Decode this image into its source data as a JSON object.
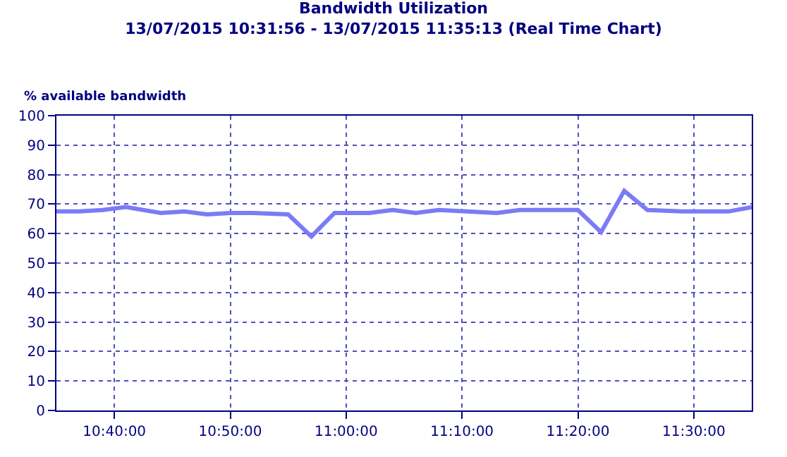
{
  "chart_data": {
    "type": "line",
    "title": "Bandwidth Utilization",
    "subtitle": "13/07/2015 10:31:56 - 13/07/2015 11:35:13 (Real Time Chart)",
    "ylabel": "% available bandwidth",
    "x": [
      "2015-07-13T10:35",
      "2015-07-13T10:37",
      "2015-07-13T10:39",
      "2015-07-13T10:41",
      "2015-07-13T10:44",
      "2015-07-13T10:46",
      "2015-07-13T10:48",
      "2015-07-13T10:50",
      "2015-07-13T10:52",
      "2015-07-13T10:55",
      "2015-07-13T10:57",
      "2015-07-13T10:59",
      "2015-07-13T11:02",
      "2015-07-13T11:04",
      "2015-07-13T11:06",
      "2015-07-13T11:08",
      "2015-07-13T11:13",
      "2015-07-13T11:15",
      "2015-07-13T11:20",
      "2015-07-13T11:22",
      "2015-07-13T11:24",
      "2015-07-13T11:26",
      "2015-07-13T11:29",
      "2015-07-13T11:33",
      "2015-07-13T11:35"
    ],
    "series": [
      {
        "color": "#7b7bf7",
        "values": [
          67.5,
          67.5,
          68,
          69,
          67,
          67.5,
          66.5,
          67,
          67,
          66.5,
          59,
          67,
          67,
          68,
          67,
          68,
          67,
          68,
          68,
          60.5,
          74.5,
          68,
          67.5,
          67.5,
          69
        ]
      }
    ],
    "xlim": [
      "2015-07-13T10:35",
      "2015-07-13T11:35"
    ],
    "xticks": [
      {
        "value": "2015-07-13T10:40",
        "label": "10:40:00"
      },
      {
        "value": "2015-07-13T10:50",
        "label": "10:50:00"
      },
      {
        "value": "2015-07-13T11:00",
        "label": "11:00:00"
      },
      {
        "value": "2015-07-13T11:10",
        "label": "11:10:00"
      },
      {
        "value": "2015-07-13T11:20",
        "label": "11:20:00"
      },
      {
        "value": "2015-07-13T11:30",
        "label": "11:30:00"
      }
    ],
    "ylim": [
      0,
      100
    ],
    "yticks": [
      0,
      10,
      20,
      30,
      40,
      50,
      60,
      70,
      80,
      90,
      100
    ],
    "grid": true,
    "marker": "none",
    "line_style": "solid"
  }
}
